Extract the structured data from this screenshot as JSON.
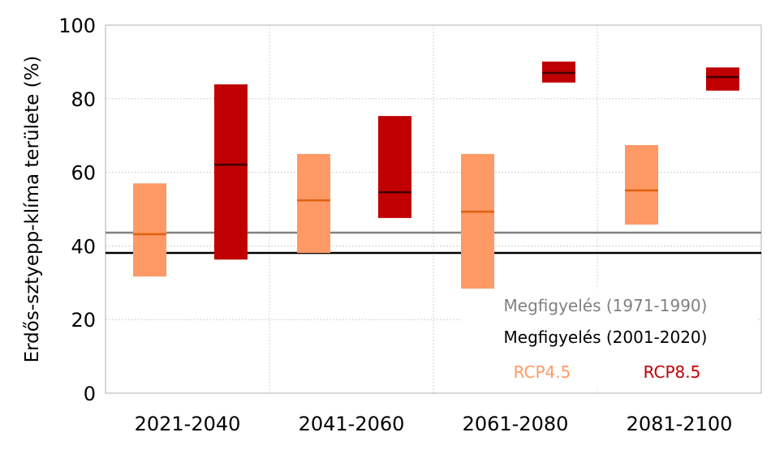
{
  "chart_data": {
    "type": "box-range",
    "ylabel": "Erdős-sztyepp-klíma területe (%)",
    "ylim": [
      0,
      100
    ],
    "yticks": [
      0,
      20,
      40,
      60,
      80,
      100
    ],
    "grid": true,
    "categories": [
      "2021-2040",
      "2041-2060",
      "2061-2080",
      "2081-2100"
    ],
    "series": [
      {
        "name": "RCP4.5",
        "color": "#FF9966",
        "median_color": "#E06010",
        "low": [
          31.7,
          38.1,
          28.4,
          45.8
        ],
        "median": [
          43.2,
          52.4,
          49.3,
          55.1
        ],
        "high": [
          57.0,
          65.0,
          65.0,
          67.4
        ]
      },
      {
        "name": "RCP8.5",
        "color": "#C00000",
        "median_color": "#400000",
        "low": [
          36.3,
          47.6,
          84.4,
          82.2
        ],
        "median": [
          62.1,
          54.6,
          87.0,
          85.9
        ],
        "high": [
          83.9,
          75.3,
          90.1,
          88.5
        ]
      }
    ],
    "reference_lines": [
      {
        "name": "Megfigyelés (1971-1990)",
        "value": 43.6,
        "color": "#808080"
      },
      {
        "name": "Megfigyelés (2001-2020)",
        "value": 38.1,
        "color": "#000000"
      }
    ],
    "legend_position": "bottom-right"
  }
}
